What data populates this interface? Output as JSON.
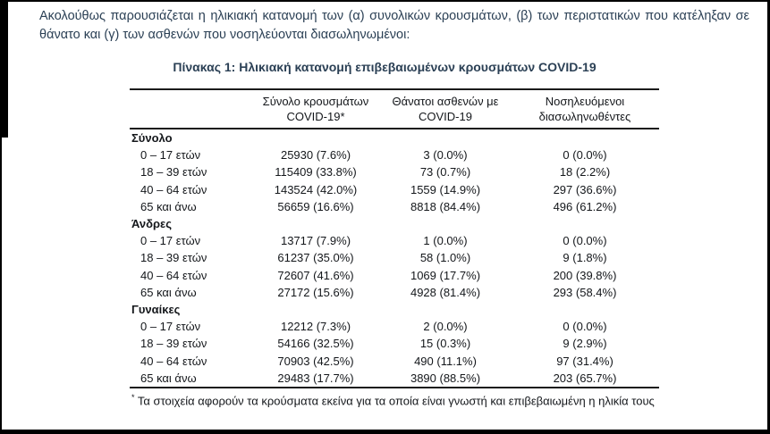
{
  "page": {
    "intro": "Ακολούθως παρουσιάζεται η ηλικιακή κατανομή των (α) συνολικών κρουσμάτων, (β) των περιστατικών που κατέληξαν σε θάνατο και (γ) των ασθενών που νοσηλεύονται διασωληνωμένοι:",
    "table_title": "Πίνακας 1: Ηλικιακή κατανομή επιβεβαιωμένων κρουσμάτων COVID-19"
  },
  "table": {
    "columns": [
      "",
      "Σύνολο κρουσμάτων COVID-19*",
      "Θάνατοι ασθενών με COVID-19",
      "Νοσηλευόμενοι διασωληνωθέντες"
    ],
    "sections": [
      {
        "label": "Σύνολο",
        "rows": [
          {
            "label": "0 – 17 ετών",
            "cases": "25930 (7.6%)",
            "deaths": "3 (0.0%)",
            "intubated": "0 (0.0%)"
          },
          {
            "label": "18 – 39 ετών",
            "cases": "115409 (33.8%)",
            "deaths": "73 (0.7%)",
            "intubated": "18 (2.2%)"
          },
          {
            "label": "40 – 64 ετών",
            "cases": "143524 (42.0%)",
            "deaths": "1559 (14.9%)",
            "intubated": "297 (36.6%)"
          },
          {
            "label": "65 και άνω",
            "cases": "56659 (16.6%)",
            "deaths": "8818 (84.4%)",
            "intubated": "496 (61.2%)"
          }
        ]
      },
      {
        "label": "Άνδρες",
        "rows": [
          {
            "label": "0 – 17 ετών",
            "cases": "13717 (7.9%)",
            "deaths": "1 (0.0%)",
            "intubated": "0 (0.0%)"
          },
          {
            "label": "18 – 39 ετών",
            "cases": "61237 (35.0%)",
            "deaths": "58 (1.0%)",
            "intubated": "9 (1.8%)"
          },
          {
            "label": "40 – 64 ετών",
            "cases": "72607 (41.6%)",
            "deaths": "1069 (17.7%)",
            "intubated": "200 (39.8%)"
          },
          {
            "label": "65 και άνω",
            "cases": "27172 (15.6%)",
            "deaths": "4928 (81.4%)",
            "intubated": "293 (58.4%)"
          }
        ]
      },
      {
        "label": "Γυναίκες",
        "rows": [
          {
            "label": "0 – 17 ετών",
            "cases": "12212 (7.3%)",
            "deaths": "2 (0.0%)",
            "intubated": "0 (0.0%)"
          },
          {
            "label": "18 – 39 ετών",
            "cases": "54166 (32.5%)",
            "deaths": "15 (0.3%)",
            "intubated": "9 (2.9%)"
          },
          {
            "label": "40 – 64 ετών",
            "cases": "70903 (42.5%)",
            "deaths": "490 (11.1%)",
            "intubated": "97 (31.4%)"
          },
          {
            "label": "65 και άνω",
            "cases": "29483 (17.7%)",
            "deaths": "3890 (88.5%)",
            "intubated": "203 (65.7%)"
          }
        ]
      }
    ],
    "footnote_marker": "*",
    "footnote": "Τα στοιχεία αφορούν τα κρούσματα εκείνα για τα οποία είναι γνωστή και επιβεβαιωμένη η ηλικία τους"
  },
  "colors": {
    "heading_text": "#2b4055",
    "table_text": "#14171b",
    "rule": "#1a1a1a",
    "page_border": "#000000"
  }
}
